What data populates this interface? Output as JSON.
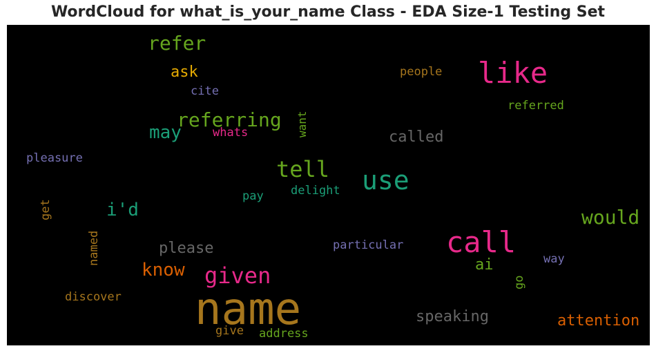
{
  "title": "WordCloud for what_is_your_name Class - EDA Size-1 Testing Set",
  "palette": {
    "background": "#000000",
    "pink": "#e7298a",
    "teal": "#1b9e77",
    "green": "#66a61e",
    "orange": "#d95f02",
    "gold": "#e6ab02",
    "purple": "#7570b3",
    "brown": "#a6761d",
    "gray": "#666666"
  },
  "words": {
    "refer": "refer",
    "ask": "ask",
    "cite": "cite",
    "like": "like",
    "people": "people",
    "referred": "referred",
    "referring": "referring",
    "may": "may",
    "whats": "whats",
    "want": "want",
    "called": "called",
    "pleasure": "pleasure",
    "tell": "tell",
    "use": "use",
    "delight": "delight",
    "pay": "pay",
    "get": "get",
    "id": "i'd",
    "would": "would",
    "named": "named",
    "please": "please",
    "particular": "particular",
    "call": "call",
    "know": "know",
    "given": "given",
    "ai": "ai",
    "way": "way",
    "go": "go",
    "discover": "discover",
    "name": "name",
    "speaking": "speaking",
    "attention": "attention",
    "give": "give",
    "address": "address"
  }
}
